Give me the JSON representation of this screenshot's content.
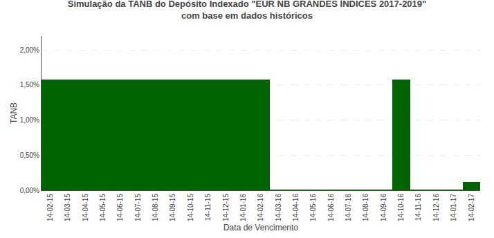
{
  "chart_data": {
    "type": "bar",
    "title": "Simulação da TANB do Depósito Indexado \"EUR NB GRANDES ÍNDICES 2017-2019\"\ncom base em dados históricos",
    "x_label": "Data de Vencimento",
    "y_label": "TANB",
    "color": "#006400",
    "categories": [
      "14-02-15",
      "14-03-15",
      "14-04-15",
      "14-05-15",
      "14-06-15",
      "14-07-15",
      "14-08-15",
      "14-09-15",
      "14-10-15",
      "14-11-15",
      "14-12-15",
      "14-01-16",
      "14-02-16",
      "14-03-16",
      "14-04-16",
      "14-05-16",
      "14-06-16",
      "14-07-16",
      "14-08-16",
      "14-09-16",
      "14-10-16",
      "14-11-16",
      "14-12-16",
      "14-01-17",
      "14-02-17"
    ],
    "values": [
      0.01583,
      0.01583,
      0.01583,
      0.01583,
      0.01583,
      0.01583,
      0.01583,
      0.01583,
      0.01583,
      0.01583,
      0.01583,
      0.01583,
      0.01583,
      8e-05,
      8e-05,
      8e-05,
      8e-05,
      8e-05,
      8e-05,
      8e-05,
      0.01583,
      8e-05,
      8e-05,
      8e-05,
      0.0012
    ],
    "ylim": [
      0.0,
      0.022
    ],
    "yticks": [
      {
        "value": 0.0,
        "label": "0,00%"
      },
      {
        "value": 0.005,
        "label": "0,50%"
      },
      {
        "value": 0.01,
        "label": "1,00%"
      },
      {
        "value": 0.015,
        "label": "1,50%"
      },
      {
        "value": 0.02,
        "label": "2,00%"
      }
    ],
    "grid": true
  }
}
